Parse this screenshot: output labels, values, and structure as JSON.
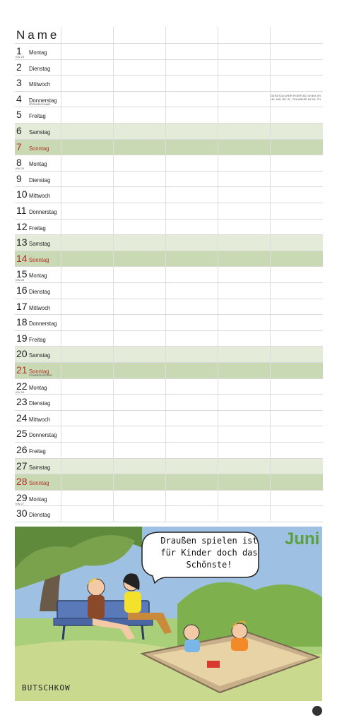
{
  "header": {
    "name_label": "Name"
  },
  "month": "Juni",
  "days": [
    {
      "day": "1",
      "weekday": "Montag",
      "kw": "KW 23",
      "type": "wd"
    },
    {
      "day": "2",
      "weekday": "Dienstag",
      "type": "wd"
    },
    {
      "day": "3",
      "weekday": "Mittwoch",
      "type": "wd"
    },
    {
      "day": "4",
      "weekday": "Donnerstag",
      "note": "FRONLEICHNAM",
      "holiday": "GESETZLICHER FEIERTAG IN BW, BY, HE, NW, RP, SL, TEILWEISE IN SN, TH",
      "type": "wd"
    },
    {
      "day": "5",
      "weekday": "Freitag",
      "type": "wd"
    },
    {
      "day": "6",
      "weekday": "Samstag",
      "type": "sat"
    },
    {
      "day": "7",
      "weekday": "Sonntag",
      "type": "sun"
    },
    {
      "day": "8",
      "weekday": "Montag",
      "kw": "KW 24",
      "type": "wd"
    },
    {
      "day": "9",
      "weekday": "Dienstag",
      "type": "wd"
    },
    {
      "day": "10",
      "weekday": "Mittwoch",
      "type": "wd"
    },
    {
      "day": "11",
      "weekday": "Donnerstag",
      "type": "wd"
    },
    {
      "day": "12",
      "weekday": "Freitag",
      "type": "wd"
    },
    {
      "day": "13",
      "weekday": "Samstag",
      "type": "sat"
    },
    {
      "day": "14",
      "weekday": "Sonntag",
      "type": "sun"
    },
    {
      "day": "15",
      "weekday": "Montag",
      "kw": "KW 25",
      "type": "wd"
    },
    {
      "day": "16",
      "weekday": "Dienstag",
      "type": "wd"
    },
    {
      "day": "17",
      "weekday": "Mittwoch",
      "type": "wd"
    },
    {
      "day": "18",
      "weekday": "Donnerstag",
      "type": "wd"
    },
    {
      "day": "19",
      "weekday": "Freitag",
      "type": "wd"
    },
    {
      "day": "20",
      "weekday": "Samstag",
      "type": "sat"
    },
    {
      "day": "21",
      "weekday": "Sonntag",
      "note": "SOMMERANFANG",
      "type": "sun"
    },
    {
      "day": "22",
      "weekday": "Montag",
      "kw": "KW 26",
      "type": "wd"
    },
    {
      "day": "23",
      "weekday": "Dienstag",
      "type": "wd"
    },
    {
      "day": "24",
      "weekday": "Mittwoch",
      "type": "wd"
    },
    {
      "day": "25",
      "weekday": "Donnerstag",
      "type": "wd"
    },
    {
      "day": "26",
      "weekday": "Freitag",
      "type": "wd"
    },
    {
      "day": "27",
      "weekday": "Samstag",
      "type": "sat"
    },
    {
      "day": "28",
      "weekday": "Sonntag",
      "type": "sun"
    },
    {
      "day": "29",
      "weekday": "Montag",
      "kw": "KW 27",
      "type": "wd"
    },
    {
      "day": "30",
      "weekday": "Dienstag",
      "type": "wd"
    }
  ],
  "cartoon": {
    "speech": "Draußen spielen ist für Kinder doch das Schönste!",
    "signature": "BUTSCHKOW"
  },
  "colors": {
    "saturday": "#e4ecd9",
    "sunday": "#c8d9b3",
    "sunday_text": "#b3322a",
    "month": "#5aa03c"
  }
}
